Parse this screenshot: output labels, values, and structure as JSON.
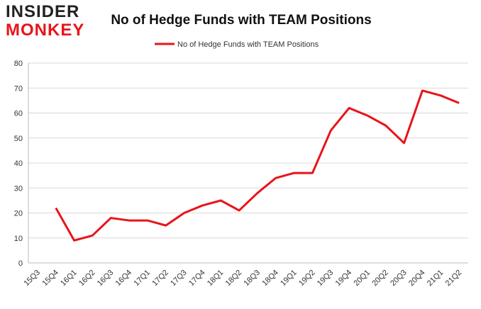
{
  "logo": {
    "line1": "INSIDER",
    "line2": "MONKEY"
  },
  "chart_data": {
    "type": "line",
    "title": "No of Hedge Funds with TEAM Positions",
    "categories": [
      "15Q3",
      "15Q4",
      "16Q1",
      "16Q2",
      "16Q3",
      "16Q4",
      "17Q1",
      "17Q2",
      "17Q3",
      "17Q4",
      "18Q1",
      "18Q2",
      "18Q3",
      "18Q4",
      "19Q1",
      "19Q2",
      "19Q3",
      "19Q4",
      "20Q1",
      "20Q2",
      "20Q3",
      "20Q4",
      "21Q1",
      "21Q2"
    ],
    "series": [
      {
        "name": "No of Hedge Funds with TEAM Positions",
        "color": "#e8141a",
        "values": [
          null,
          22,
          9,
          11,
          18,
          17,
          17,
          15,
          20,
          23,
          25,
          21,
          28,
          34,
          36,
          36,
          53,
          62,
          59,
          55,
          48,
          69,
          67,
          64
        ]
      }
    ],
    "ylim": [
      0,
      80
    ],
    "yticks": [
      0,
      10,
      20,
      30,
      40,
      50,
      60,
      70,
      80
    ],
    "grid": true,
    "legend": "top"
  }
}
